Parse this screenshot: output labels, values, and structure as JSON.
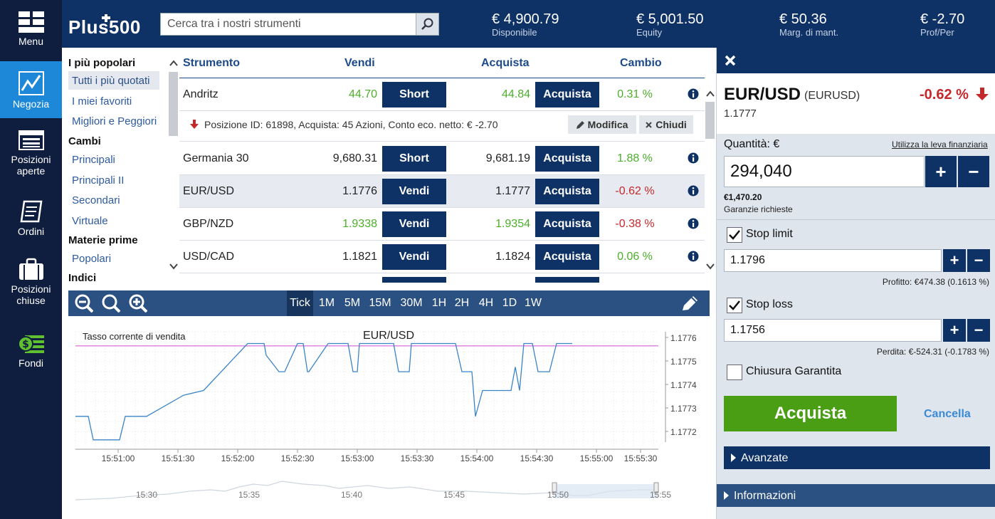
{
  "colors": {
    "navy": "#0f3266",
    "rail": "#0f1d3e",
    "active": "#1e88d8",
    "green": "#4caf2a",
    "red": "#c5282b",
    "buy_button": "#4a9e14"
  },
  "rail": [
    {
      "label": "Menu",
      "icon": "menu-grid-icon"
    },
    {
      "label": "Negozia",
      "icon": "trade-chart-icon",
      "active": true
    },
    {
      "label": "Posizioni aperte",
      "icon": "open-positions-icon"
    },
    {
      "label": "Ordini",
      "icon": "orders-icon"
    },
    {
      "label": "Posizioni chiuse",
      "icon": "briefcase-icon"
    },
    {
      "label": "Fondi",
      "icon": "money-icon"
    }
  ],
  "header": {
    "logo_text": "Plus500",
    "search_placeholder": "Cerca tra i nostri strumenti",
    "stats": [
      {
        "value": "€ 4,900.79",
        "label": "Disponibile"
      },
      {
        "value": "€ 5,001.50",
        "label": "Equity"
      },
      {
        "value": "€ 50.36",
        "label": "Marg. di mant."
      },
      {
        "value": "€ -2.70",
        "label": "Prof/Per"
      }
    ]
  },
  "categories": {
    "groups": [
      {
        "title": "I più popolari",
        "items": [
          "Tutti i più quotati",
          "I miei favoriti",
          "Migliori e Peggiori"
        ],
        "selected": 0
      },
      {
        "title": "Cambi",
        "items": [
          "Principali",
          "Principali II",
          "Secondari",
          "Virtuale"
        ]
      },
      {
        "title": "Materie prime",
        "items": [
          "Popolari"
        ]
      },
      {
        "title": "Indici",
        "items": []
      }
    ]
  },
  "table": {
    "headers": {
      "instrument": "Strumento",
      "sell": "Vendi",
      "buy": "Acquista",
      "change": "Cambio"
    },
    "rows": [
      {
        "name": "Andritz",
        "sell": "44.70",
        "sell_btn": "Short",
        "buy": "44.84",
        "buy_btn": "Acquista",
        "change": "0.31 %",
        "dir": "up",
        "price_color": "green"
      },
      {
        "name": "Germania 30",
        "sell": "9,680.31",
        "sell_btn": "Short",
        "buy": "9,681.19",
        "buy_btn": "Acquista",
        "change": "1.88 %",
        "dir": "up",
        "price_color": "default"
      },
      {
        "name": "EUR/USD",
        "sell": "1.1776",
        "sell_btn": "Vendi",
        "buy": "1.1777",
        "buy_btn": "Acquista",
        "change": "-0.62 %",
        "dir": "down",
        "price_color": "default"
      },
      {
        "name": "GBP/NZD",
        "sell": "1.9338",
        "sell_btn": "Vendi",
        "buy": "1.9354",
        "buy_btn": "Acquista",
        "change": "-0.38 %",
        "dir": "down",
        "price_color": "green"
      },
      {
        "name": "USD/CAD",
        "sell": "1.1821",
        "sell_btn": "Vendi",
        "buy": "1.1824",
        "buy_btn": "Acquista",
        "change": "0.06 %",
        "dir": "up",
        "price_color": "default"
      }
    ],
    "position": {
      "text": "Posizione ID: 61898, Acquista: 45 Azioni, Conto eco. netto: € -2.70",
      "modify": "Modifica",
      "close": "Chiudi"
    }
  },
  "chart_toolbar": {
    "timeframes": [
      "Tick",
      "1M",
      "5M",
      "15M",
      "30M",
      "1H",
      "2H",
      "4H",
      "1D",
      "1W"
    ],
    "selected": "Tick"
  },
  "chart_data": {
    "type": "line",
    "title": "EUR/USD",
    "subtitle": "Tasso corrente di vendita",
    "x_ticks": [
      "15:51:00",
      "15:51:30",
      "15:52:00",
      "15:52:30",
      "15:53:00",
      "15:53:30",
      "15:54:00",
      "15:54:30",
      "15:55:00",
      "15:55:30"
    ],
    "y_ticks": [
      "1.1776",
      "1.1775",
      "1.1774",
      "1.1773",
      "1.1772"
    ],
    "ylim": [
      1.17715,
      1.17765
    ],
    "current_rate": 1.17759,
    "series": [
      {
        "x": [
          0,
          18,
          25,
          62,
          70,
          100,
          152,
          180,
          242,
          250,
          265,
          268,
          286,
          294,
          312,
          320,
          326,
          328,
          355,
          383,
          390,
          396,
          399,
          447,
          454,
          469,
          472,
          478,
          487,
          497,
          508,
          524,
          534,
          543,
          550,
          557,
          562,
          572,
          575,
          590,
          612,
          618,
          624,
          630,
          634,
          642,
          650,
          661,
          666,
          676,
          678,
          684,
          690,
          698
        ],
        "y": [
          1.17729,
          1.17729,
          1.17719,
          1.17719,
          1.17729,
          1.17729,
          1.17738,
          1.1774,
          1.1776,
          1.1776,
          1.1776,
          1.17755,
          1.17748,
          1.17748,
          1.1776,
          1.1776,
          1.17748,
          1.17748,
          1.1776,
          1.1776,
          1.17748,
          1.17748,
          1.1776,
          1.1776,
          1.17748,
          1.17748,
          1.1776,
          1.1776,
          1.1776,
          1.1776,
          1.1776,
          1.1776,
          1.1776,
          1.17748,
          1.17748,
          1.17748,
          1.17729,
          1.1774,
          1.1774,
          1.1774,
          1.1774,
          1.1775,
          1.1774,
          1.1776,
          1.1776,
          1.1776,
          1.17748,
          1.17748,
          1.17748,
          1.1776,
          1.1776,
          1.1776,
          1.1776,
          1.1776
        ]
      }
    ],
    "navigator_ticks": [
      "15:30",
      "15:35",
      "15:40",
      "15:45",
      "15:50",
      "15:55"
    ]
  },
  "panel": {
    "close_icon": "close-icon",
    "symbol": "EUR/USD",
    "code": "(EURUSD)",
    "price": "1.1777",
    "change": "-0.62 %",
    "quantity_label": "Quantità: €",
    "leverage_link": "Utilizza la leva finanziaria",
    "quantity_value": "294,040",
    "margin_value": "€1,470.20",
    "margin_label": "Garanzie richieste",
    "stop_limit": {
      "label": "Stop limit",
      "checked": true,
      "value": "1.1796",
      "note": "Profitto: €474.38 (0.1613 %)"
    },
    "stop_loss": {
      "label": "Stop loss",
      "checked": true,
      "value": "1.1756",
      "note": "Perdita: €-524.31 (-0.1783 %)"
    },
    "guaranteed": {
      "label": "Chiusura Garantita",
      "checked": false
    },
    "buy_button": "Acquista",
    "cancel": "Cancella",
    "advanced": "Avanzate",
    "info": "Informazioni"
  }
}
